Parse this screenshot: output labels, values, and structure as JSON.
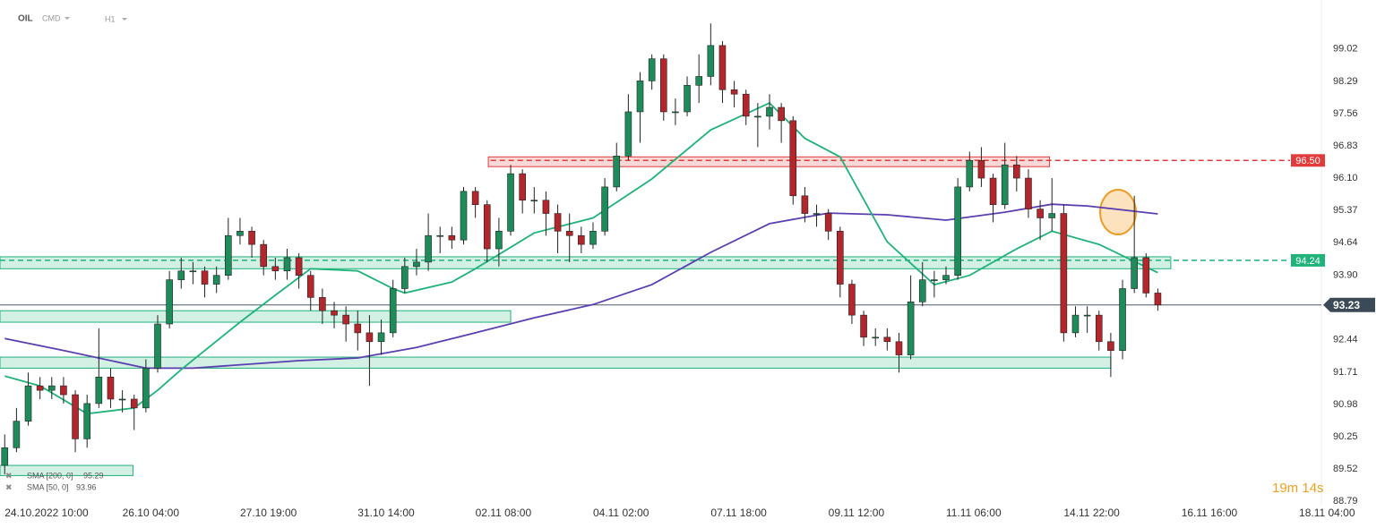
{
  "chart_data": {
    "type": "candlestick",
    "symbol": "OIL",
    "market": "CMD",
    "timeframe": "H1",
    "up_color": "#1e8c5a",
    "down_color": "#b3262b",
    "xlim": [
      -0.4,
      111.9
    ],
    "ylim": [
      88.69,
      100.13
    ],
    "xticks": [
      {
        "value": 0,
        "label": "24.10.2022 10:00"
      },
      {
        "value": 10,
        "label": "26.10 04:00"
      },
      {
        "value": 20,
        "label": "27.10 19:00"
      },
      {
        "value": 30,
        "label": "31.10 14:00"
      },
      {
        "value": 40,
        "label": "02.11 08:00"
      },
      {
        "value": 50,
        "label": "04.11 02:00"
      },
      {
        "value": 60,
        "label": "07.11 18:00"
      },
      {
        "value": 70,
        "label": "09.11 12:00"
      },
      {
        "value": 80,
        "label": "11.11 06:00"
      },
      {
        "value": 90,
        "label": "14.11 22:00"
      },
      {
        "value": 100,
        "label": "16.11 16:00"
      },
      {
        "value": 110,
        "label": "18.11 04:00"
      }
    ],
    "yticks": [
      99.02,
      98.29,
      97.56,
      96.83,
      {
        "value": 96.1,
        "label": "96.10"
      },
      95.37,
      94.64,
      {
        "value": 93.9,
        "label": "93.90"
      },
      92.44,
      91.71,
      90.98,
      90.25,
      89.52,
      88.79
    ],
    "x": [
      0,
      1,
      2,
      3,
      4,
      5,
      6,
      7,
      8,
      9,
      10,
      11,
      12,
      13,
      14,
      15,
      16,
      17,
      18,
      19,
      20,
      21,
      22,
      23,
      24,
      25,
      26,
      27,
      28,
      29,
      30,
      31,
      32,
      33,
      34,
      35,
      36,
      37,
      38,
      39,
      40,
      41,
      42,
      43,
      44,
      45,
      46,
      47,
      48,
      49,
      50,
      51,
      52,
      53,
      54,
      55,
      56,
      57,
      58,
      59,
      60,
      61,
      62,
      63,
      64,
      65,
      66,
      67,
      68,
      69,
      70,
      71,
      72,
      73,
      74,
      75,
      76,
      77,
      78,
      79,
      80,
      81,
      82,
      83,
      84,
      85,
      86,
      87,
      88,
      89,
      90,
      91,
      92,
      93,
      94,
      95,
      96,
      97,
      98
    ],
    "open": [
      89.6,
      90.0,
      90.6,
      91.4,
      91.3,
      91.4,
      91.2,
      90.2,
      91.0,
      91.6,
      91.1,
      91.1,
      90.9,
      91.8,
      92.8,
      93.8,
      94.0,
      94.0,
      93.7,
      93.9,
      94.8,
      94.9,
      94.6,
      94.1,
      94.0,
      94.3,
      93.9,
      93.4,
      93.1,
      93.0,
      92.8,
      92.6,
      92.4,
      92.6,
      93.6,
      94.1,
      94.2,
      94.8,
      94.8,
      94.7,
      95.8,
      95.5,
      94.5,
      94.9,
      96.2,
      95.6,
      95.6,
      95.3,
      94.9,
      94.8,
      94.6,
      94.9,
      95.9,
      96.6,
      97.6,
      98.3,
      98.8,
      97.6,
      97.6,
      98.2,
      98.4,
      99.1,
      98.1,
      98.0,
      97.5,
      97.5,
      97.7,
      97.4,
      95.7,
      95.3,
      95.3,
      94.9,
      93.7,
      93.0,
      92.5,
      92.5,
      92.4,
      92.1,
      93.3,
      93.8,
      93.8,
      93.9,
      95.9,
      96.5,
      96.1,
      95.5,
      96.4,
      96.1,
      95.4,
      95.2,
      95.3,
      92.6,
      93.0,
      93.0,
      92.4,
      92.2,
      93.6,
      94.3,
      93.5
    ],
    "high": [
      90.3,
      90.9,
      91.7,
      91.6,
      91.6,
      91.6,
      91.3,
      91.2,
      92.7,
      91.8,
      91.3,
      91.2,
      92.0,
      93.0,
      94.0,
      94.3,
      94.2,
      94.1,
      94.1,
      95.2,
      95.2,
      95.0,
      94.7,
      94.3,
      94.5,
      94.4,
      94.0,
      93.6,
      93.3,
      93.2,
      93.1,
      93.0,
      92.9,
      93.8,
      94.3,
      94.5,
      95.3,
      95.0,
      95.0,
      95.9,
      95.9,
      95.6,
      95.2,
      96.4,
      96.3,
      95.9,
      95.8,
      95.5,
      95.3,
      95.0,
      95.1,
      96.1,
      96.9,
      98.0,
      98.5,
      98.9,
      98.9,
      97.9,
      98.4,
      98.9,
      99.6,
      99.2,
      98.3,
      98.1,
      97.8,
      98.0,
      97.8,
      97.5,
      95.9,
      95.5,
      95.4,
      95.0,
      93.8,
      93.1,
      92.7,
      92.7,
      92.6,
      93.9,
      94.2,
      94.0,
      94.1,
      96.1,
      96.7,
      96.8,
      96.2,
      96.9,
      96.6,
      96.3,
      95.6,
      96.1,
      95.5,
      93.2,
      93.2,
      93.1,
      92.6,
      93.8,
      95.7,
      94.4,
      93.6
    ],
    "low": [
      89.4,
      89.9,
      90.5,
      91.1,
      91.1,
      91.0,
      89.9,
      90.0,
      90.9,
      90.9,
      90.8,
      90.4,
      90.8,
      91.7,
      92.7,
      93.6,
      93.7,
      93.4,
      93.5,
      93.8,
      94.6,
      94.3,
      93.9,
      93.8,
      93.8,
      93.6,
      93.1,
      92.8,
      92.7,
      92.4,
      92.2,
      91.4,
      92.1,
      92.5,
      93.5,
      93.9,
      94.0,
      94.4,
      94.5,
      94.6,
      95.2,
      94.2,
      94.1,
      94.8,
      95.3,
      95.3,
      94.8,
      94.4,
      94.2,
      94.4,
      94.5,
      94.8,
      95.8,
      96.5,
      96.9,
      98.1,
      97.4,
      97.3,
      97.5,
      97.8,
      98.2,
      97.8,
      97.7,
      97.3,
      96.8,
      97.2,
      96.9,
      95.5,
      95.1,
      95.0,
      94.7,
      93.4,
      92.8,
      92.3,
      92.3,
      92.2,
      91.7,
      92.0,
      93.2,
      93.4,
      93.7,
      93.8,
      95.8,
      95.9,
      95.1,
      95.4,
      95.8,
      95.2,
      94.7,
      94.9,
      92.4,
      92.5,
      92.6,
      92.2,
      91.6,
      92.0,
      93.5,
      93.4,
      93.1
    ],
    "close": [
      90.0,
      90.6,
      91.4,
      91.3,
      91.4,
      91.2,
      90.2,
      91.0,
      91.6,
      91.1,
      91.1,
      90.9,
      91.8,
      92.8,
      93.8,
      94.0,
      94.0,
      93.7,
      93.9,
      94.8,
      94.9,
      94.6,
      94.1,
      94.0,
      94.3,
      93.9,
      93.4,
      93.1,
      93.0,
      92.8,
      92.6,
      92.4,
      92.6,
      93.6,
      94.1,
      94.2,
      94.8,
      94.8,
      94.7,
      95.8,
      95.5,
      94.5,
      94.9,
      96.2,
      95.6,
      95.6,
      95.3,
      94.9,
      94.8,
      94.6,
      94.9,
      95.9,
      96.6,
      97.6,
      98.3,
      98.8,
      97.6,
      97.6,
      98.2,
      98.4,
      99.1,
      98.1,
      98.0,
      97.5,
      97.5,
      97.7,
      97.4,
      95.7,
      95.3,
      95.3,
      94.9,
      93.7,
      93.0,
      92.5,
      92.5,
      92.4,
      92.1,
      93.3,
      93.8,
      93.8,
      93.9,
      95.9,
      96.5,
      96.1,
      95.5,
      96.4,
      96.1,
      95.4,
      95.2,
      95.3,
      92.6,
      93.0,
      93.0,
      92.4,
      92.2,
      93.6,
      94.3,
      93.5,
      93.23
    ],
    "sma": [
      {
        "name": "SMA [200, 0]",
        "color": "#5b3fb0",
        "x": [
          0,
          5,
          12,
          16,
          25,
          30,
          35,
          40,
          45,
          50,
          55,
          60,
          65,
          70,
          75,
          80,
          85,
          89,
          92,
          98
        ],
        "values": [
          92.47,
          92.2,
          91.8,
          91.8,
          91.97,
          92.03,
          92.27,
          92.6,
          92.94,
          93.24,
          93.69,
          94.42,
          95.07,
          95.31,
          95.27,
          95.15,
          95.33,
          95.51,
          95.47,
          95.29
        ]
      },
      {
        "name": "SMA [50, 0]",
        "color": "#1fb37a",
        "x": [
          0,
          3,
          7,
          11,
          13,
          15,
          20,
          23,
          26,
          30,
          33,
          34,
          38,
          40,
          45,
          50,
          55,
          60,
          65,
          68,
          71,
          75,
          79,
          82,
          86,
          89,
          93,
          98
        ],
        "values": [
          91.62,
          91.4,
          90.77,
          90.9,
          91.3,
          91.77,
          92.84,
          93.45,
          94.05,
          94.0,
          93.6,
          93.5,
          93.75,
          94.05,
          94.86,
          95.2,
          96.08,
          97.19,
          97.8,
          97.0,
          96.58,
          94.66,
          93.69,
          93.9,
          94.5,
          94.9,
          94.6,
          93.96
        ]
      }
    ],
    "zones": [
      {
        "color": "#e23b3b",
        "low": 96.36,
        "high": 96.58,
        "x": [
          41.1,
          88.8
        ]
      },
      {
        "color": "#1fb37a",
        "low": 94.05,
        "high": 94.32,
        "x": [
          -0.4,
          99.1
        ]
      },
      {
        "color": "#1fb37a",
        "low": 92.84,
        "high": 93.1,
        "x": [
          -0.4,
          43
        ]
      },
      {
        "color": "#1fb37a",
        "low": 91.8,
        "high": 92.05,
        "x": [
          -0.4,
          94
        ]
      },
      {
        "color": "#1fb37a",
        "low": 89.37,
        "high": 89.6,
        "x": [
          -0.4,
          10.9
        ]
      }
    ],
    "levels": [
      {
        "value": 96.5,
        "label": "96.50",
        "color": "#e23b3b",
        "from": 41.3
      },
      {
        "value": 94.24,
        "label": "94.24",
        "color": "#1fb37a",
        "from": -0.4
      }
    ],
    "last_price": 93.23,
    "countdown": "19m 14s"
  }
}
